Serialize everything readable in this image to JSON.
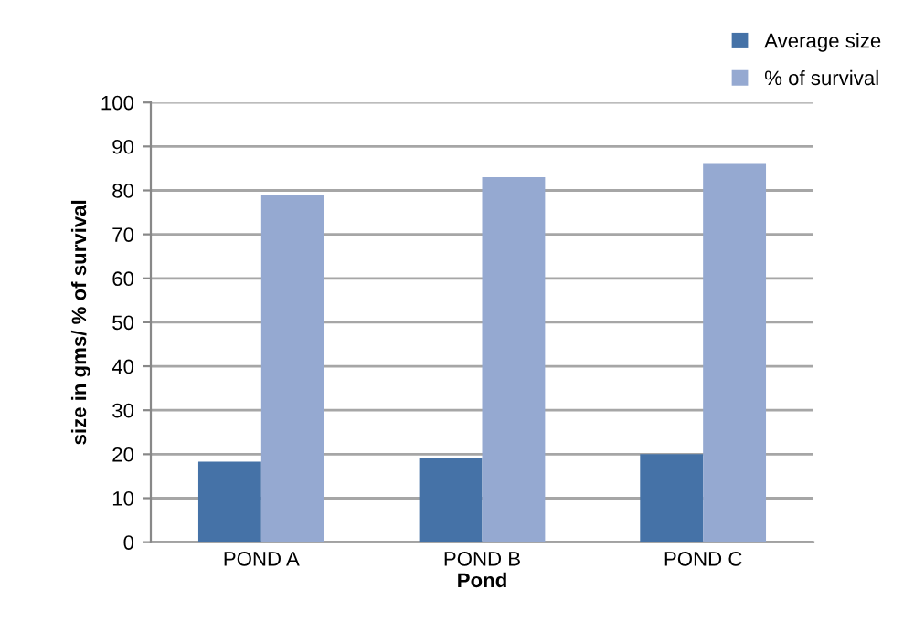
{
  "chart_data": {
    "type": "bar",
    "xlabel": "Pond",
    "ylabel": "size in gms/ % of survival",
    "categories": [
      "POND A",
      "POND B",
      "POND C"
    ],
    "series": [
      {
        "name": "Average size",
        "color": "#4572a7",
        "values": [
          18.3,
          19.2,
          20
        ]
      },
      {
        "name": "% of survival",
        "color": "#95a9d1",
        "values": [
          79,
          83,
          86
        ]
      }
    ],
    "ylim": [
      0,
      100
    ],
    "yticks": [
      0,
      10,
      20,
      30,
      40,
      50,
      60,
      70,
      80,
      90,
      100
    ],
    "grid": "y",
    "legend": "top right"
  }
}
